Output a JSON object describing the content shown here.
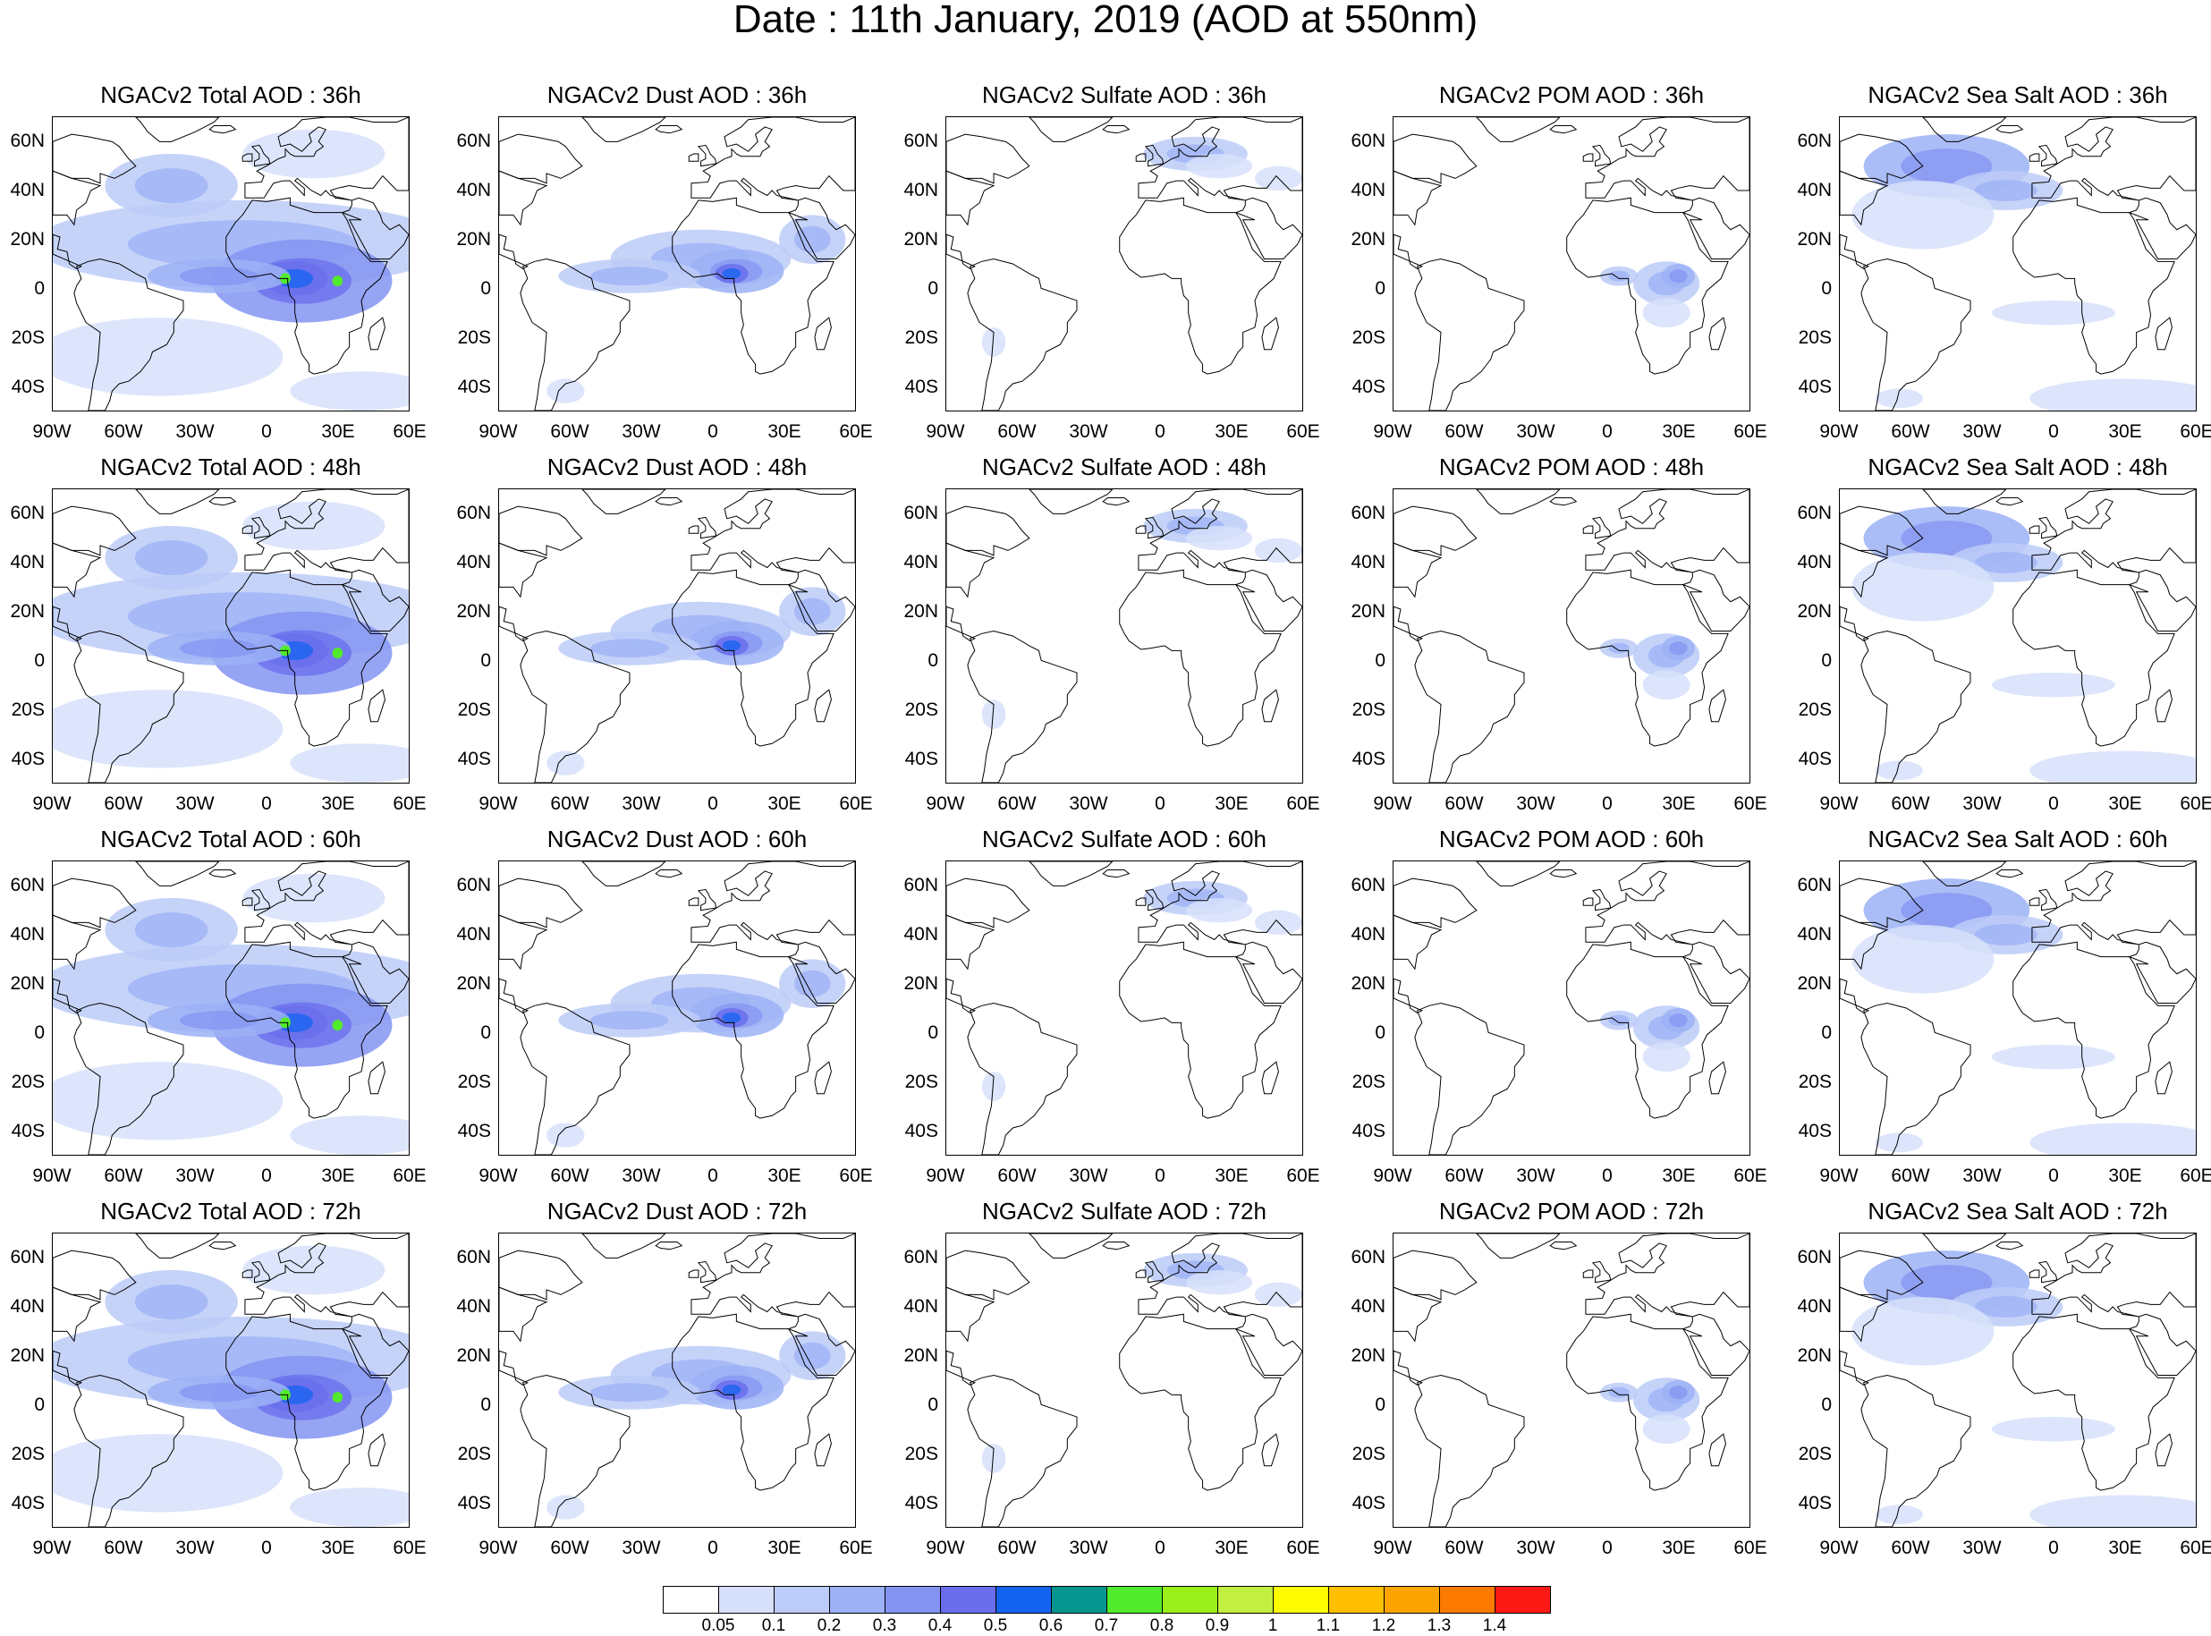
{
  "title": "Date : 11th January, 2019 (AOD at 550nm)",
  "panels": [
    {
      "title": "NGACv2 Total AOD : 36h",
      "kind": "total"
    },
    {
      "title": "NGACv2 Dust AOD : 36h",
      "kind": "dust"
    },
    {
      "title": "NGACv2 Sulfate AOD : 36h",
      "kind": "sulfate"
    },
    {
      "title": "NGACv2 POM AOD : 36h",
      "kind": "pom"
    },
    {
      "title": "NGACv2 Sea Salt AOD : 36h",
      "kind": "seasalt"
    },
    {
      "title": "NGACv2 Total AOD : 48h",
      "kind": "total"
    },
    {
      "title": "NGACv2 Dust AOD : 48h",
      "kind": "dust"
    },
    {
      "title": "NGACv2 Sulfate AOD : 48h",
      "kind": "sulfate"
    },
    {
      "title": "NGACv2 POM AOD : 48h",
      "kind": "pom"
    },
    {
      "title": "NGACv2 Sea Salt AOD : 48h",
      "kind": "seasalt"
    },
    {
      "title": "NGACv2 Total AOD : 60h",
      "kind": "total"
    },
    {
      "title": "NGACv2 Dust AOD : 60h",
      "kind": "dust"
    },
    {
      "title": "NGACv2 Sulfate AOD : 60h",
      "kind": "sulfate"
    },
    {
      "title": "NGACv2 POM AOD : 60h",
      "kind": "pom"
    },
    {
      "title": "NGACv2 Sea Salt AOD : 60h",
      "kind": "seasalt"
    },
    {
      "title": "NGACv2 Total AOD : 72h",
      "kind": "total"
    },
    {
      "title": "NGACv2 Dust AOD : 72h",
      "kind": "dust"
    },
    {
      "title": "NGACv2 Sulfate AOD : 72h",
      "kind": "sulfate"
    },
    {
      "title": "NGACv2 POM AOD : 72h",
      "kind": "pom"
    },
    {
      "title": "NGACv2 Sea Salt  AOD : 72h",
      "kind": "seasalt"
    }
  ],
  "map": {
    "lon_range": [
      -90,
      60
    ],
    "lat_range": [
      -50,
      70
    ],
    "lon_ticks": [
      "90W",
      "60W",
      "30W",
      "0",
      "30E",
      "60E"
    ],
    "lat_ticks": [
      "60N",
      "40N",
      "20N",
      "0",
      "20S",
      "40S"
    ]
  },
  "colorbar": {
    "levels": [
      "0.05",
      "0.1",
      "0.2",
      "0.3",
      "0.4",
      "0.5",
      "0.6",
      "0.7",
      "0.8",
      "0.9",
      "1",
      "1.1",
      "1.2",
      "1.3",
      "1.4"
    ],
    "colors": [
      "#ffffff",
      "#d6e0fa",
      "#bccbf8",
      "#9cb1f6",
      "#8494f2",
      "#6a6eec",
      "#1463ef",
      "#06958f",
      "#52ea2c",
      "#9aee1a",
      "#c3ef40",
      "#fdfd00",
      "#fdbf00",
      "#fda400",
      "#fd7a00",
      "#fd1a14"
    ]
  }
}
